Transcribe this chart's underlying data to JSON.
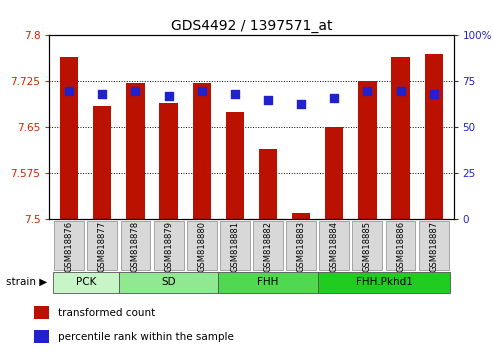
{
  "title": "GDS4492 / 1397571_at",
  "samples": [
    "GSM818876",
    "GSM818877",
    "GSM818878",
    "GSM818879",
    "GSM818880",
    "GSM818881",
    "GSM818882",
    "GSM818883",
    "GSM818884",
    "GSM818885",
    "GSM818886",
    "GSM818887"
  ],
  "transformed_count": [
    7.765,
    7.685,
    7.722,
    7.69,
    7.722,
    7.675,
    7.615,
    7.51,
    7.65,
    7.725,
    7.765,
    7.77
  ],
  "percentile": [
    70,
    68,
    70,
    67,
    70,
    68,
    65,
    63,
    66,
    70,
    70,
    68
  ],
  "groups": [
    {
      "label": "PCK",
      "start": 0,
      "end": 1,
      "color": "#c8f5c8"
    },
    {
      "label": "SD",
      "start": 2,
      "end": 4,
      "color": "#90e890"
    },
    {
      "label": "FHH",
      "start": 5,
      "end": 7,
      "color": "#50d850"
    },
    {
      "label": "FHH.Pkhd1",
      "start": 8,
      "end": 11,
      "color": "#20cc20"
    }
  ],
  "ylim_left": [
    7.5,
    7.8
  ],
  "ylim_right": [
    0,
    100
  ],
  "yticks_left": [
    7.5,
    7.575,
    7.65,
    7.725,
    7.8
  ],
  "yticks_right": [
    0,
    25,
    50,
    75,
    100
  ],
  "bar_color": "#bb1100",
  "dot_color": "#2222cc",
  "tick_label_color_left": "#cc2200",
  "tick_label_color_right": "#2222cc",
  "background_color": "#ffffff",
  "legend_items": [
    "transformed count",
    "percentile rank within the sample"
  ],
  "legend_colors": [
    "#bb1100",
    "#2222cc"
  ],
  "bar_width": 0.55,
  "dot_size": 30,
  "sample_box_color": "#d8d8d8",
  "group_colors": [
    "#c8f5c8",
    "#90e890",
    "#50d850",
    "#20cc20"
  ]
}
